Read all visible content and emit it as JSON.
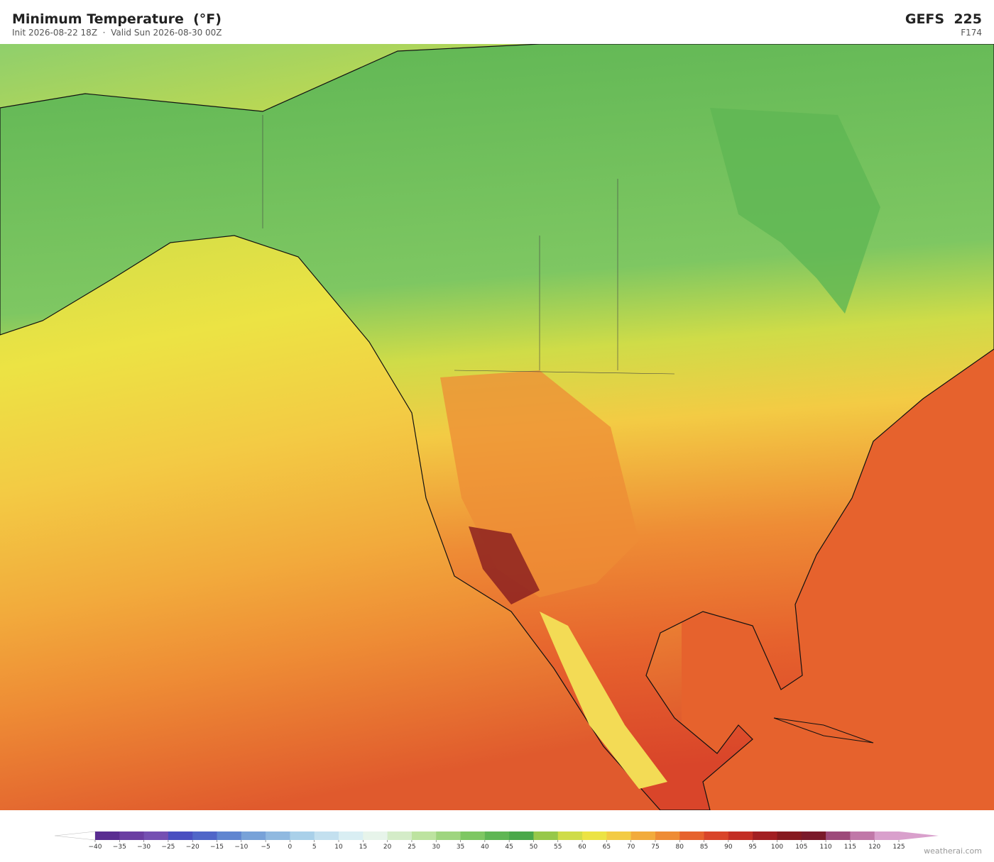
{
  "header": {
    "title": "Minimum Temperature  (°F)",
    "subtitle": "Init 2026-08-22 18Z  ·  Valid Sun 2026-08-30 00Z",
    "model": "GEFS  225",
    "forecast_hour": "F174"
  },
  "colorbar": {
    "ticks": [
      {
        "value": -40,
        "label": "−40"
      },
      {
        "value": -35,
        "label": "−35"
      },
      {
        "value": -30,
        "label": "−30"
      },
      {
        "value": -25,
        "label": "−25"
      },
      {
        "value": -20,
        "label": "−20"
      },
      {
        "value": -15,
        "label": "−15"
      },
      {
        "value": -10,
        "label": "−10"
      },
      {
        "value": -5,
        "label": "−5"
      },
      0,
      5,
      10,
      15,
      20,
      25,
      30,
      35,
      40,
      45,
      50,
      55,
      60,
      65,
      70,
      75,
      80,
      85,
      90,
      95,
      100,
      105,
      110,
      115,
      120,
      125
    ],
    "colors": [
      "#5a2d91",
      "#6b3ea2",
      "#7550b2",
      "#4a4fc0",
      "#5066c8",
      "#6085d0",
      "#78a2d8",
      "#90b9e0",
      "#a9d0e9",
      "#c3e0ef",
      "#d9eef3",
      "#e7f4ea",
      "#d4ecc8",
      "#bde3a0",
      "#9fd57f",
      "#7ec762",
      "#5fb654",
      "#4aa84a",
      "#97c84a",
      "#cfdc48",
      "#ece344",
      "#f3cb44",
      "#f2ab3c",
      "#ee8c35",
      "#e6622d",
      "#d9452a",
      "#c32f25",
      "#a21f22",
      "#861a1f",
      "#7a1a2a",
      "#9d4a7a",
      "#c078a8",
      "#d9a0cc"
    ]
  },
  "credit": "weatherai.com"
}
